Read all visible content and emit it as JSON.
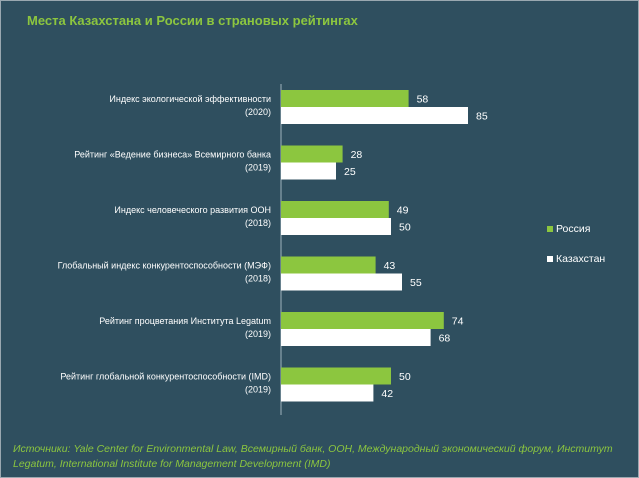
{
  "chart_data": {
    "type": "bar",
    "orientation": "horizontal",
    "title": "Места Казахстана и России в страновых рейтингах",
    "categories": [
      [
        "Индекс экологической эффективности",
        "(2020)"
      ],
      [
        "Рейтинг «Ведение бизнеса» Всемирного банка",
        "(2019)"
      ],
      [
        "Индекс человеческого развития ООН",
        "(2018)"
      ],
      [
        "Глобальный индекс конкурентоспособности (МЭФ)",
        "(2018)"
      ],
      [
        "Рейтинг процветания Института Legatum",
        "(2019)"
      ],
      [
        "Рейтинг глобальной конкурентоспособности (IMD)",
        "(2019)"
      ]
    ],
    "series": [
      {
        "name": "Россия",
        "color": "#8cc63f",
        "values": [
          58,
          28,
          49,
          43,
          74,
          50
        ]
      },
      {
        "name": "Казахстан",
        "color": "#ffffff",
        "values": [
          85,
          25,
          50,
          55,
          68,
          42
        ]
      }
    ],
    "xlim": [
      0,
      100
    ],
    "grid": false,
    "legend_position": "right",
    "background": "#2f4f5f"
  },
  "source_text": "Источники: Yale Center for Environmental Law, Всемирный банк, ООН, Международный экономический форум, Институт Legatum, International Institute for Management Development (IMD)"
}
